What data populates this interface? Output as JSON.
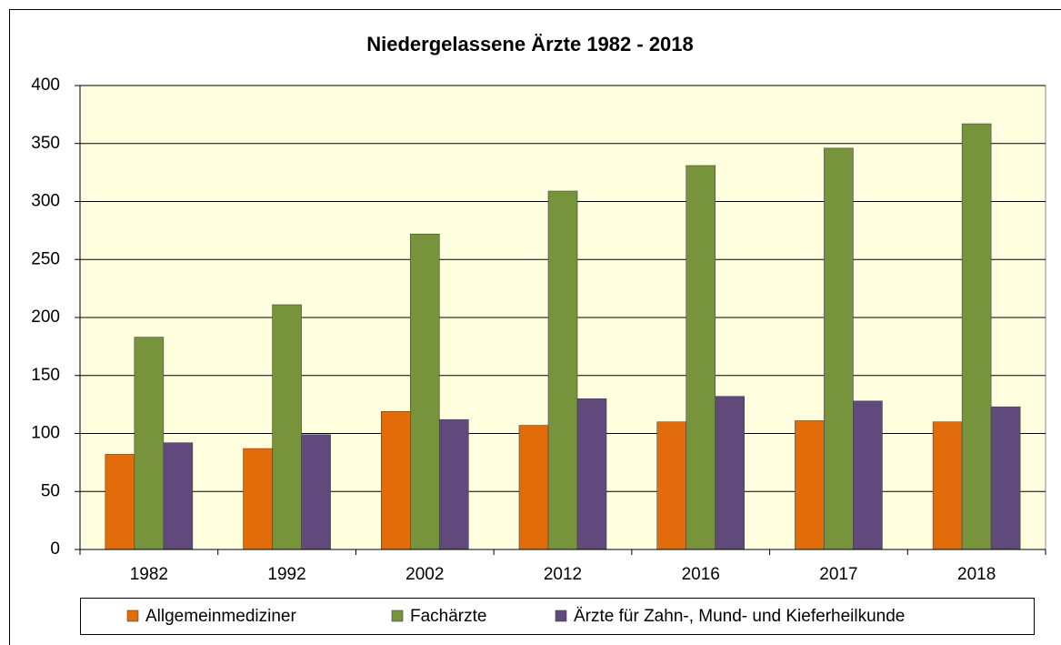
{
  "chart_data": {
    "type": "bar",
    "title": "Niedergelassene Ärzte 1982 - 2018",
    "categories": [
      "1982",
      "1992",
      "2002",
      "2012",
      "2016",
      "2017",
      "2018"
    ],
    "series": [
      {
        "name": "Allgemeinmediziner",
        "color": "#e36c0a",
        "values": [
          82,
          87,
          119,
          107,
          110,
          111,
          110
        ]
      },
      {
        "name": "Fachärzte",
        "color": "#77933c",
        "values": [
          183,
          211,
          272,
          309,
          331,
          346,
          367
        ]
      },
      {
        "name": "Ärzte für Zahn-, Mund- und Kieferheilkunde",
        "color": "#604a7b",
        "values": [
          92,
          99,
          112,
          130,
          132,
          128,
          123
        ]
      }
    ],
    "ylim": [
      0,
      400
    ],
    "yticks": [
      0,
      50,
      100,
      150,
      200,
      250,
      300,
      350,
      400
    ],
    "grid": true,
    "legend": "bottom"
  }
}
